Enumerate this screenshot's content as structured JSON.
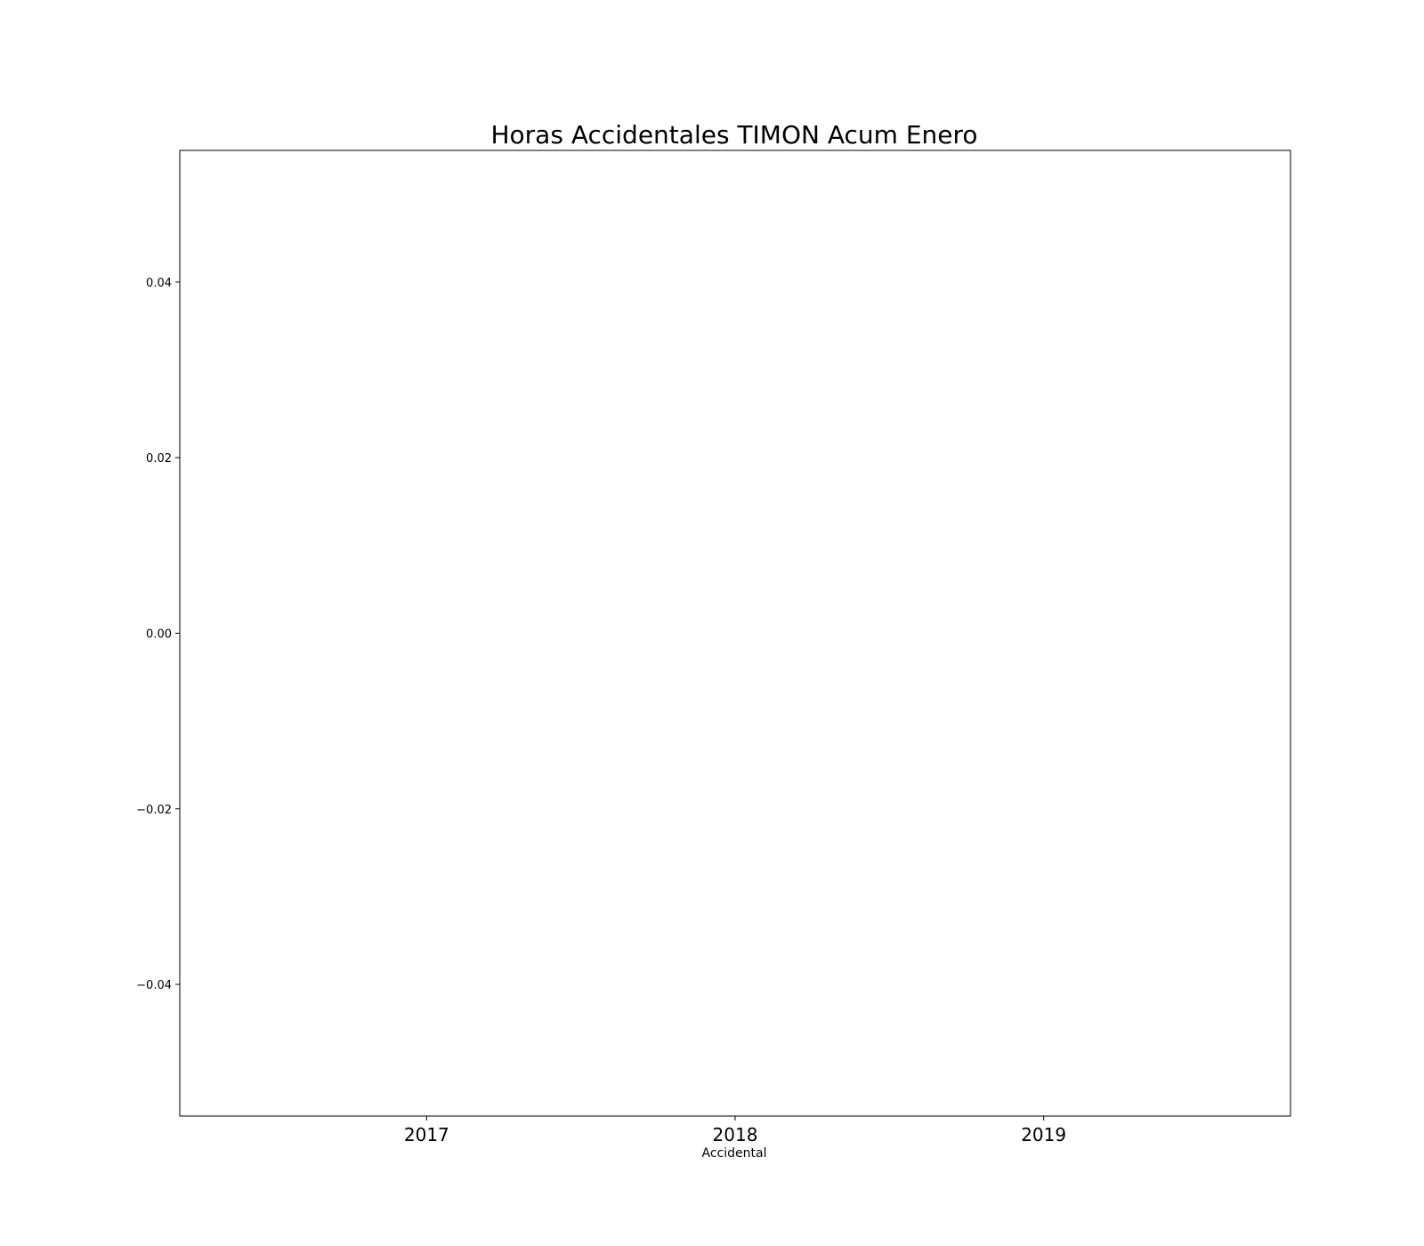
{
  "chart_data": {
    "type": "bar",
    "title": "Horas Accidentales TIMON Acum Enero",
    "xlabel": "Accidental",
    "ylabel": "",
    "categories": [
      "2017",
      "2018",
      "2019"
    ],
    "values": [
      0,
      0,
      0
    ],
    "ylim": [
      -0.055,
      0.055
    ],
    "yticks": [
      0.04,
      0.02,
      0.0,
      -0.02,
      -0.04
    ],
    "ytick_labels": [
      "0.04",
      "0.02",
      "0.00",
      "−0.02",
      "−0.04"
    ],
    "grid": false,
    "legend": "none",
    "colors": {
      "axis": "#000000",
      "background": "#ffffff"
    }
  }
}
